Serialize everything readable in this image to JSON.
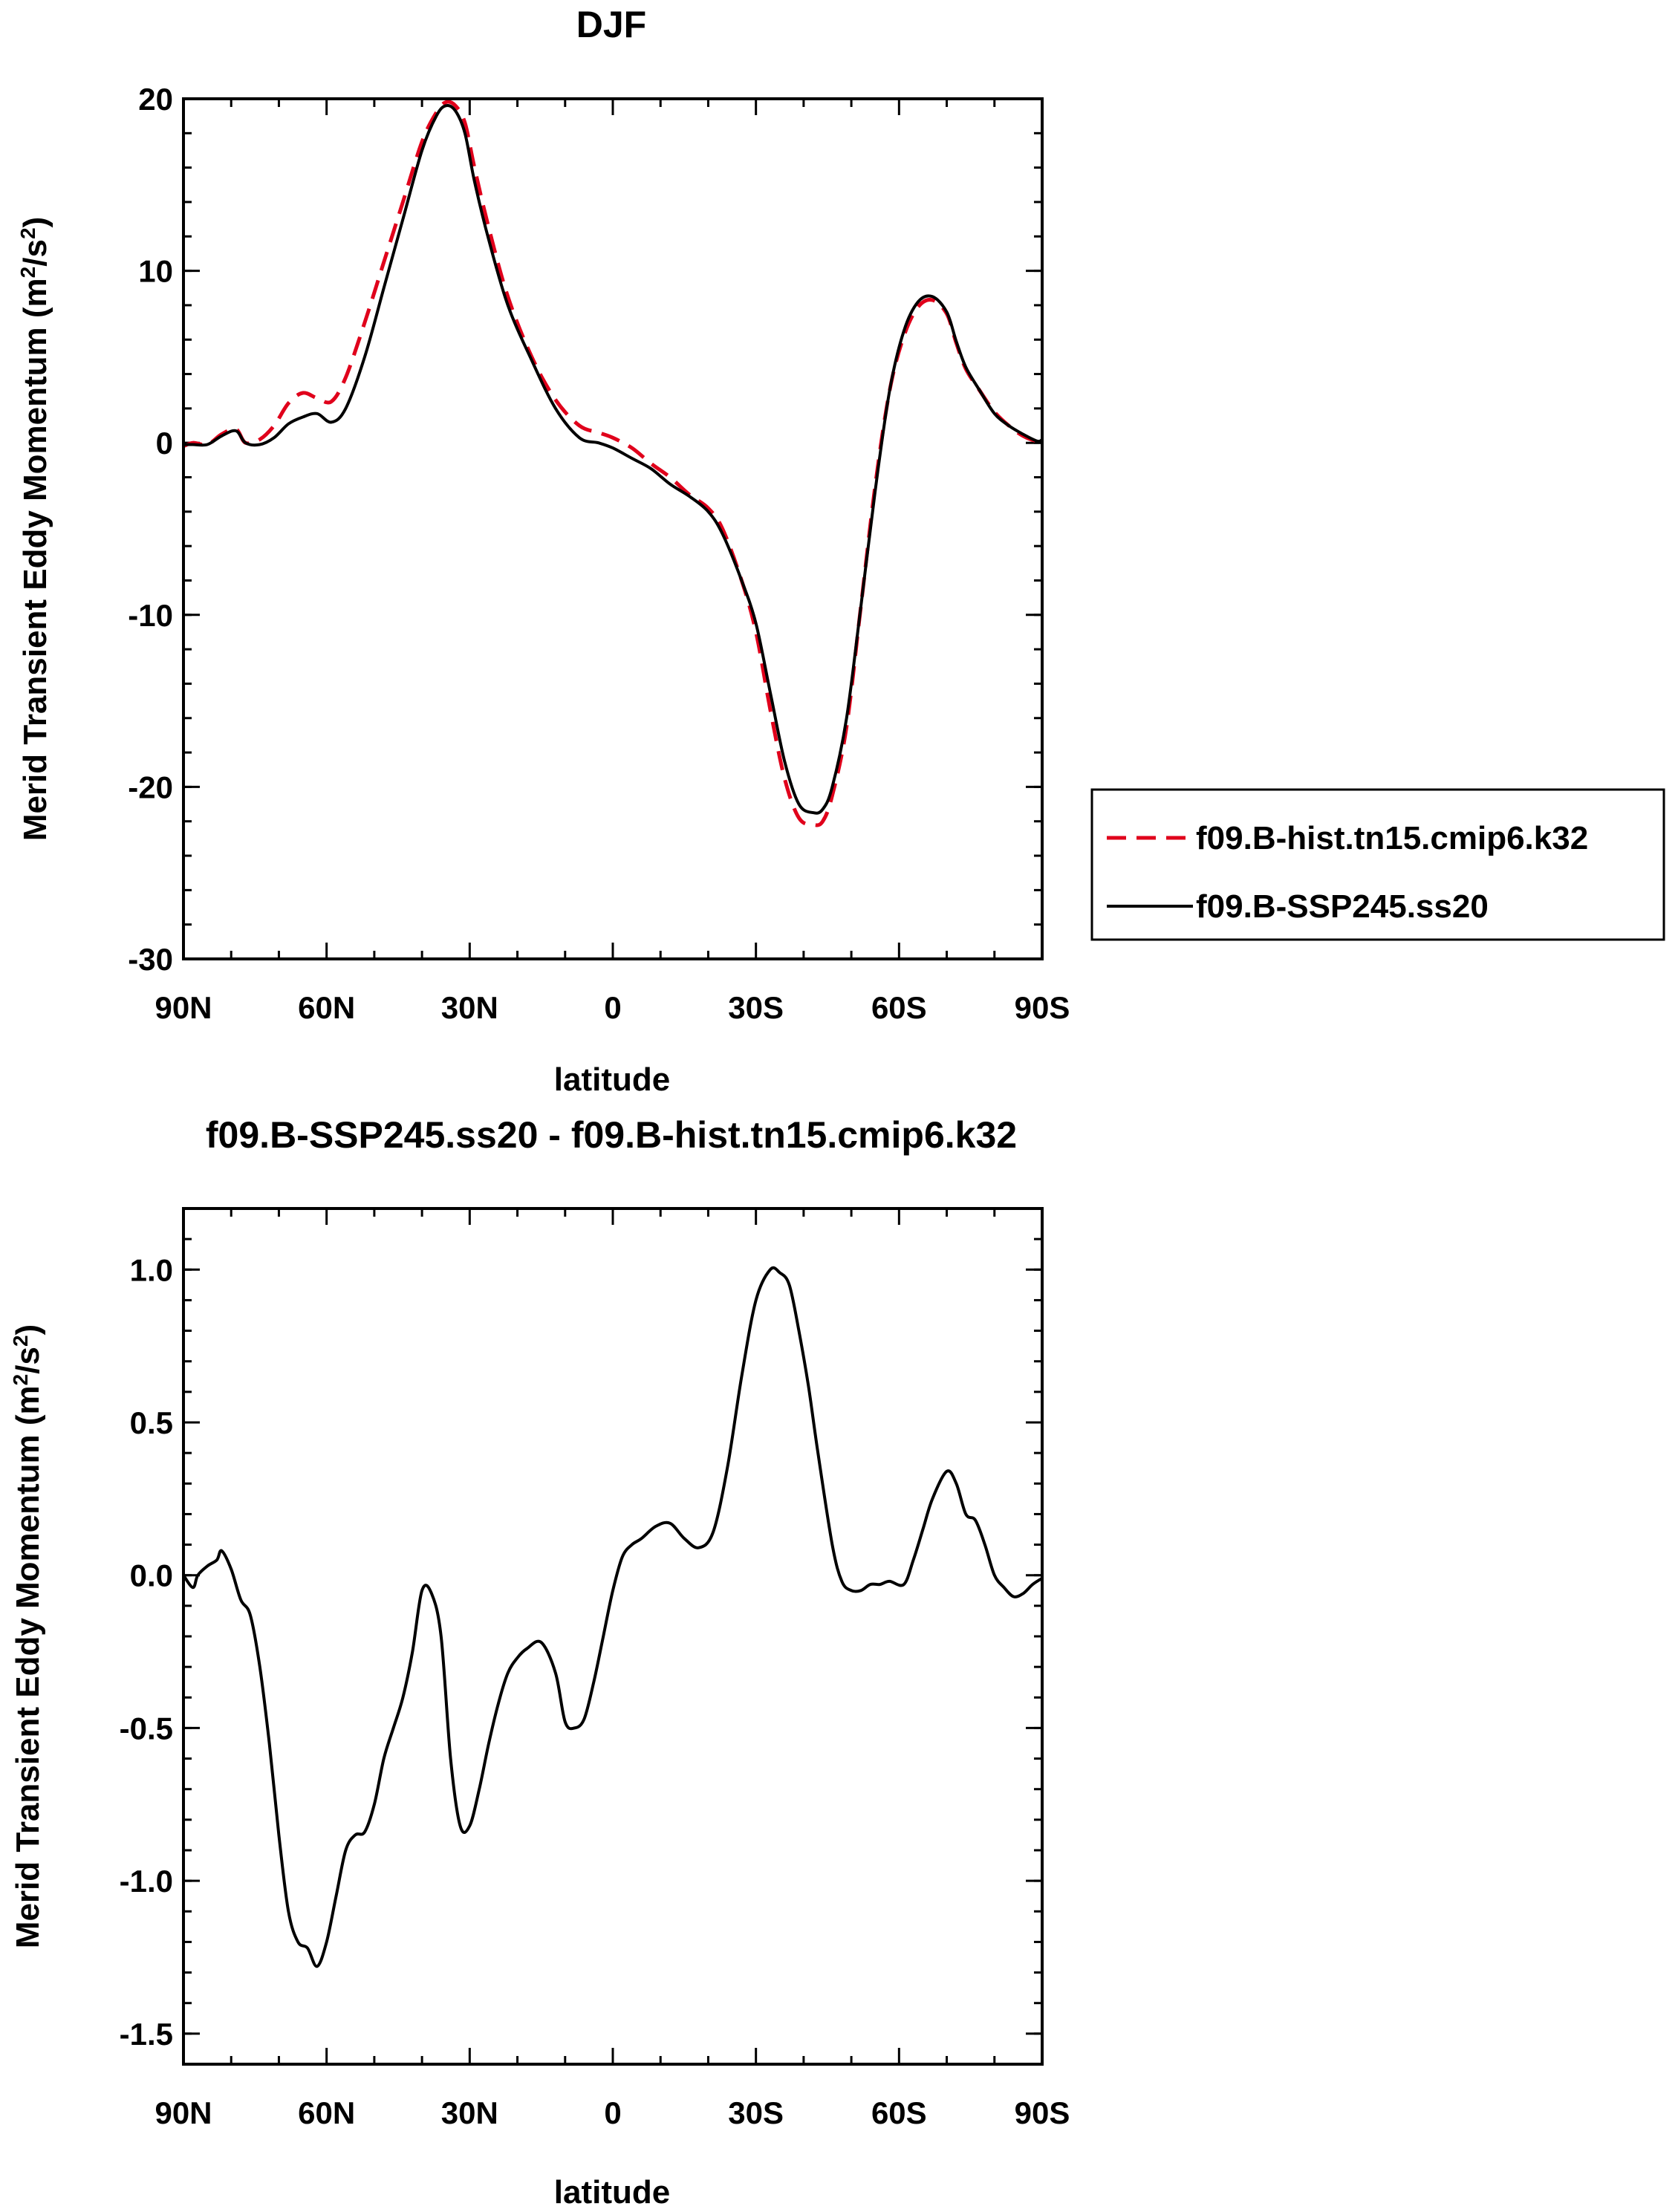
{
  "chart_data": [
    {
      "type": "line",
      "title": "DJF",
      "xlabel": "latitude",
      "ylabel": "Merid Transient Eddy Momentum (m²/s²)",
      "xlim": [
        90,
        -90
      ],
      "ylim": [
        -30,
        20
      ],
      "x_ticks": [
        {
          "value": 90,
          "label": "90N"
        },
        {
          "value": 60,
          "label": "60N"
        },
        {
          "value": 30,
          "label": "30N"
        },
        {
          "value": 0,
          "label": "0"
        },
        {
          "value": -30,
          "label": "30S"
        },
        {
          "value": -60,
          "label": "60S"
        },
        {
          "value": -90,
          "label": "90S"
        }
      ],
      "y_ticks": [
        {
          "value": 20,
          "label": "20"
        },
        {
          "value": 10,
          "label": "10"
        },
        {
          "value": 0,
          "label": "0"
        },
        {
          "value": -10,
          "label": "-10"
        },
        {
          "value": -20,
          "label": "-20"
        },
        {
          "value": -30,
          "label": "-30"
        }
      ],
      "legend_position": "right",
      "series": [
        {
          "name": "f09.B-hist.tn15.cmip6.k32",
          "color": "#e0001b",
          "style": "dashed",
          "x": [
            90,
            88,
            85,
            82,
            79,
            77,
            74,
            71,
            68,
            65,
            62,
            59,
            56,
            52,
            48,
            44,
            40,
            37,
            35,
            33,
            31,
            29,
            26,
            22,
            17,
            12,
            7,
            3,
            0,
            -4,
            -8,
            -12,
            -16,
            -20,
            -23,
            -27,
            -30,
            -33,
            -36,
            -39,
            -42,
            -44,
            -46,
            -49,
            -52,
            -55,
            -58,
            -61,
            -64,
            -67,
            -70,
            -72,
            -74,
            -77,
            -80,
            -83,
            -86,
            -89,
            -90
          ],
          "y": [
            -0.2,
            0.0,
            -0.1,
            0.5,
            0.8,
            0.0,
            0.2,
            1.0,
            2.3,
            2.9,
            2.6,
            2.4,
            3.8,
            7.0,
            10.5,
            14.0,
            17.5,
            19.2,
            19.8,
            19.6,
            18.6,
            16.0,
            12.5,
            8.5,
            5.0,
            2.5,
            1.0,
            0.6,
            0.3,
            -0.3,
            -1.2,
            -2.0,
            -3.0,
            -3.8,
            -5.0,
            -8.0,
            -11.0,
            -15.5,
            -19.5,
            -21.8,
            -22.2,
            -22.0,
            -20.5,
            -16.5,
            -9.5,
            -2.5,
            3.0,
            6.2,
            7.9,
            8.3,
            7.5,
            5.8,
            4.3,
            3.0,
            1.8,
            1.0,
            0.4,
            0.1,
            0.3
          ]
        },
        {
          "name": "f09.B-SSP245.ss20",
          "color": "#000000",
          "style": "solid",
          "x": [
            90,
            88,
            85,
            82,
            79,
            77,
            74,
            71,
            68,
            65,
            62,
            59,
            56,
            52,
            48,
            44,
            40,
            37,
            35,
            33,
            31,
            29,
            26,
            22,
            17,
            12,
            7,
            3,
            0,
            -4,
            -8,
            -12,
            -16,
            -20,
            -23,
            -27,
            -30,
            -33,
            -36,
            -39,
            -42,
            -44,
            -46,
            -49,
            -52,
            -55,
            -58,
            -61,
            -64,
            -67,
            -70,
            -72,
            -74,
            -77,
            -80,
            -83,
            -86,
            -89,
            -90
          ],
          "y": [
            -0.1,
            -0.1,
            -0.1,
            0.4,
            0.7,
            0.0,
            -0.1,
            0.3,
            1.1,
            1.5,
            1.7,
            1.2,
            2.0,
            5.0,
            9.0,
            13.0,
            17.0,
            19.0,
            19.6,
            19.3,
            18.0,
            15.2,
            11.8,
            8.0,
            4.8,
            2.0,
            0.3,
            0.0,
            -0.3,
            -0.9,
            -1.5,
            -2.4,
            -3.1,
            -4.0,
            -5.3,
            -8.0,
            -10.5,
            -14.5,
            -18.5,
            -21.0,
            -21.5,
            -21.3,
            -20.0,
            -16.0,
            -9.5,
            -2.8,
            3.0,
            6.5,
            8.2,
            8.5,
            7.6,
            5.9,
            4.4,
            3.0,
            1.7,
            1.0,
            0.5,
            0.1,
            0.2
          ]
        }
      ]
    },
    {
      "type": "line",
      "title": "f09.B-SSP245.ss20 - f09.B-hist.tn15.cmip6.k32",
      "xlabel": "latitude",
      "ylabel": "Merid Transient Eddy Momentum (m²/s²)",
      "xlim": [
        90,
        -90
      ],
      "ylim": [
        -1.6,
        1.2
      ],
      "x_ticks": [
        {
          "value": 90,
          "label": "90N"
        },
        {
          "value": 60,
          "label": "60N"
        },
        {
          "value": 30,
          "label": "30N"
        },
        {
          "value": 0,
          "label": "0"
        },
        {
          "value": -30,
          "label": "30S"
        },
        {
          "value": -60,
          "label": "60S"
        },
        {
          "value": -90,
          "label": "90S"
        }
      ],
      "y_ticks": [
        {
          "value": 1.0,
          "label": "1.0"
        },
        {
          "value": 0.5,
          "label": "0.5"
        },
        {
          "value": 0.0,
          "label": "0.0"
        },
        {
          "value": -0.5,
          "label": "-0.5"
        },
        {
          "value": -1.0,
          "label": "-1.0"
        },
        {
          "value": -1.5,
          "label": "-1.5"
        }
      ],
      "series": [
        {
          "color": "#000000",
          "style": "solid",
          "x": [
            90,
            88,
            87,
            85,
            83,
            82,
            80,
            78,
            76,
            74,
            72,
            70,
            68,
            66,
            64,
            62,
            60,
            58,
            56,
            54,
            52,
            50,
            48,
            46,
            44,
            42,
            40,
            38,
            36,
            34,
            32,
            30,
            28,
            26,
            24,
            22,
            20,
            18,
            15,
            12,
            10,
            8,
            6,
            4,
            2,
            0,
            -2,
            -4,
            -6,
            -9,
            -12,
            -15,
            -18,
            -21,
            -24,
            -27,
            -30,
            -33,
            -35,
            -37,
            -39,
            -41,
            -43,
            -46,
            -48,
            -50,
            -52,
            -54,
            -56,
            -58,
            -61,
            -63,
            -65,
            -67,
            -70,
            -72,
            -74,
            -76,
            -78,
            -80,
            -82,
            -84,
            -86,
            -88,
            -90
          ],
          "y": [
            0.0,
            -0.04,
            0.0,
            0.03,
            0.05,
            0.08,
            0.02,
            -0.08,
            -0.13,
            -0.3,
            -0.55,
            -0.85,
            -1.1,
            -1.2,
            -1.22,
            -1.28,
            -1.2,
            -1.05,
            -0.9,
            -0.85,
            -0.84,
            -0.75,
            -0.6,
            -0.5,
            -0.4,
            -0.25,
            -0.05,
            -0.06,
            -0.2,
            -0.6,
            -0.82,
            -0.82,
            -0.7,
            -0.55,
            -0.42,
            -0.32,
            -0.27,
            -0.24,
            -0.22,
            -0.32,
            -0.48,
            -0.5,
            -0.47,
            -0.35,
            -0.2,
            -0.05,
            0.06,
            0.1,
            0.12,
            0.16,
            0.17,
            0.12,
            0.09,
            0.14,
            0.35,
            0.65,
            0.9,
            1.0,
            0.99,
            0.95,
            0.8,
            0.62,
            0.4,
            0.1,
            -0.02,
            -0.05,
            -0.05,
            -0.03,
            -0.03,
            -0.02,
            -0.03,
            0.05,
            0.15,
            0.25,
            0.34,
            0.3,
            0.2,
            0.18,
            0.1,
            0.0,
            -0.04,
            -0.07,
            -0.06,
            -0.03,
            -0.01
          ]
        }
      ]
    }
  ],
  "legend": {
    "items": [
      {
        "label": "f09.B-hist.tn15.cmip6.k32"
      },
      {
        "label": "f09.B-SSP245.ss20"
      }
    ]
  }
}
